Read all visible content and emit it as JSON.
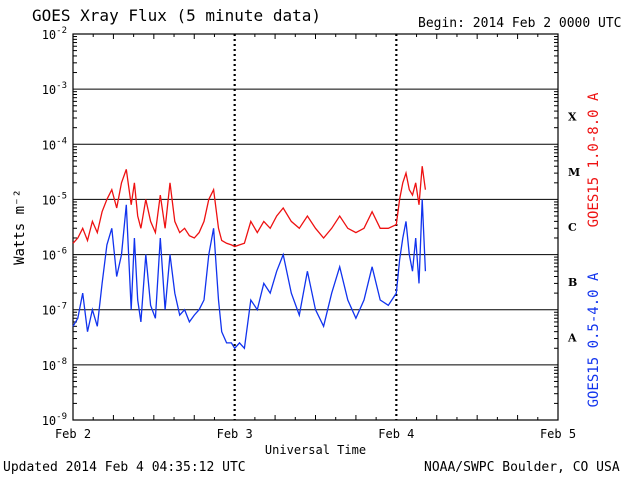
{
  "header": {
    "title": "GOES Xray Flux (5 minute data)",
    "begin": "Begin:  2014 Feb 2 0000 UTC"
  },
  "footer": {
    "updated": "Updated 2014 Feb  4 04:35:12 UTC",
    "credit": "NOAA/SWPC Boulder, CO USA"
  },
  "colors": {
    "long": "#ee1111",
    "short": "#1133ee",
    "grid": "#000000"
  },
  "chart_data": {
    "type": "line",
    "title": "GOES Xray Flux (5 minute data)",
    "xlabel": "Universal Time",
    "ylabel": "Watts m⁻²",
    "y_scale": "log",
    "ylim": [
      1e-09,
      0.01
    ],
    "xlim": [
      0,
      3
    ],
    "x_ticks": [
      "Feb 2",
      "Feb 3",
      "Feb 4",
      "Feb 5"
    ],
    "y_ticks": [
      {
        "base": "10",
        "exp": "-9"
      },
      {
        "base": "10",
        "exp": "-8"
      },
      {
        "base": "10",
        "exp": "-7"
      },
      {
        "base": "10",
        "exp": "-6"
      },
      {
        "base": "10",
        "exp": "-5"
      },
      {
        "base": "10",
        "exp": "-4"
      },
      {
        "base": "10",
        "exp": "-3"
      },
      {
        "base": "10",
        "exp": "-2"
      }
    ],
    "flare_classes": [
      {
        "label": "A",
        "level": 1e-08
      },
      {
        "label": "B",
        "level": 1e-07
      },
      {
        "label": "C",
        "level": 1e-06
      },
      {
        "label": "M",
        "level": 1e-05
      },
      {
        "label": "X",
        "level": 0.0001
      }
    ],
    "series": [
      {
        "name": "GOES15 1.0-8.0 A",
        "color": "#ee1111",
        "x": [
          0,
          0.03,
          0.06,
          0.09,
          0.12,
          0.15,
          0.18,
          0.21,
          0.24,
          0.27,
          0.3,
          0.33,
          0.36,
          0.38,
          0.4,
          0.42,
          0.45,
          0.48,
          0.51,
          0.54,
          0.57,
          0.6,
          0.63,
          0.66,
          0.69,
          0.72,
          0.75,
          0.78,
          0.81,
          0.84,
          0.87,
          0.9,
          0.92,
          0.95,
          0.98,
          1.0,
          1.03,
          1.06,
          1.1,
          1.14,
          1.18,
          1.22,
          1.26,
          1.3,
          1.35,
          1.4,
          1.45,
          1.5,
          1.55,
          1.6,
          1.65,
          1.7,
          1.75,
          1.8,
          1.85,
          1.9,
          1.95,
          2.0,
          2.02,
          2.04,
          2.06,
          2.08,
          2.1,
          2.12,
          2.14,
          2.16,
          2.18
        ],
        "y": [
          1.6e-06,
          2e-06,
          3e-06,
          1.8e-06,
          4e-06,
          2.5e-06,
          6e-06,
          1e-05,
          1.5e-05,
          7e-06,
          2e-05,
          3.5e-05,
          8e-06,
          2e-05,
          5e-06,
          3e-06,
          1e-05,
          4e-06,
          2.5e-06,
          1.2e-05,
          3e-06,
          2e-05,
          4e-06,
          2.5e-06,
          3e-06,
          2.2e-06,
          2e-06,
          2.5e-06,
          4e-06,
          1e-05,
          1.5e-05,
          3e-06,
          1.8e-06,
          1.6e-06,
          1.5e-06,
          1.4e-06,
          1.5e-06,
          1.6e-06,
          4e-06,
          2.5e-06,
          4e-06,
          3e-06,
          5e-06,
          7e-06,
          4e-06,
          3e-06,
          5e-06,
          3e-06,
          2e-06,
          3e-06,
          5e-06,
          3e-06,
          2.5e-06,
          3e-06,
          6e-06,
          3e-06,
          3e-06,
          3.5e-06,
          1e-05,
          2e-05,
          3e-05,
          1.5e-05,
          1.2e-05,
          2e-05,
          8e-06,
          4e-05,
          1.5e-05
        ]
      },
      {
        "name": "GOES15 0.5-4.0 A",
        "color": "#1133ee",
        "x": [
          0,
          0.03,
          0.06,
          0.09,
          0.12,
          0.15,
          0.18,
          0.21,
          0.24,
          0.27,
          0.3,
          0.33,
          0.36,
          0.38,
          0.4,
          0.42,
          0.45,
          0.48,
          0.51,
          0.54,
          0.57,
          0.6,
          0.63,
          0.66,
          0.69,
          0.72,
          0.75,
          0.78,
          0.81,
          0.84,
          0.87,
          0.9,
          0.92,
          0.95,
          0.98,
          1.0,
          1.03,
          1.06,
          1.1,
          1.14,
          1.18,
          1.22,
          1.26,
          1.3,
          1.35,
          1.4,
          1.45,
          1.5,
          1.55,
          1.6,
          1.65,
          1.7,
          1.75,
          1.8,
          1.85,
          1.9,
          1.95,
          2.0,
          2.02,
          2.04,
          2.06,
          2.08,
          2.1,
          2.12,
          2.14,
          2.16,
          2.18
        ],
        "y": [
          5e-08,
          7e-08,
          2e-07,
          4e-08,
          1e-07,
          5e-08,
          3e-07,
          1.5e-06,
          3e-06,
          4e-07,
          1e-06,
          8e-06,
          1e-07,
          2e-06,
          1.5e-07,
          6e-08,
          1e-06,
          1.2e-07,
          7e-08,
          2e-06,
          1e-07,
          1e-06,
          2e-07,
          8e-08,
          1e-07,
          6e-08,
          8e-08,
          1e-07,
          1.5e-07,
          1e-06,
          3e-06,
          1.5e-07,
          4e-08,
          2.5e-08,
          2.5e-08,
          2e-08,
          2.5e-08,
          2e-08,
          1.5e-07,
          1e-07,
          3e-07,
          2e-07,
          5e-07,
          1e-06,
          2e-07,
          8e-08,
          5e-07,
          1e-07,
          5e-08,
          2e-07,
          6e-07,
          1.5e-07,
          7e-08,
          1.5e-07,
          6e-07,
          1.5e-07,
          1.2e-07,
          2e-07,
          8e-07,
          2e-06,
          4e-06,
          1e-06,
          5e-07,
          2e-06,
          3e-07,
          1e-05,
          5e-07
        ]
      }
    ]
  }
}
